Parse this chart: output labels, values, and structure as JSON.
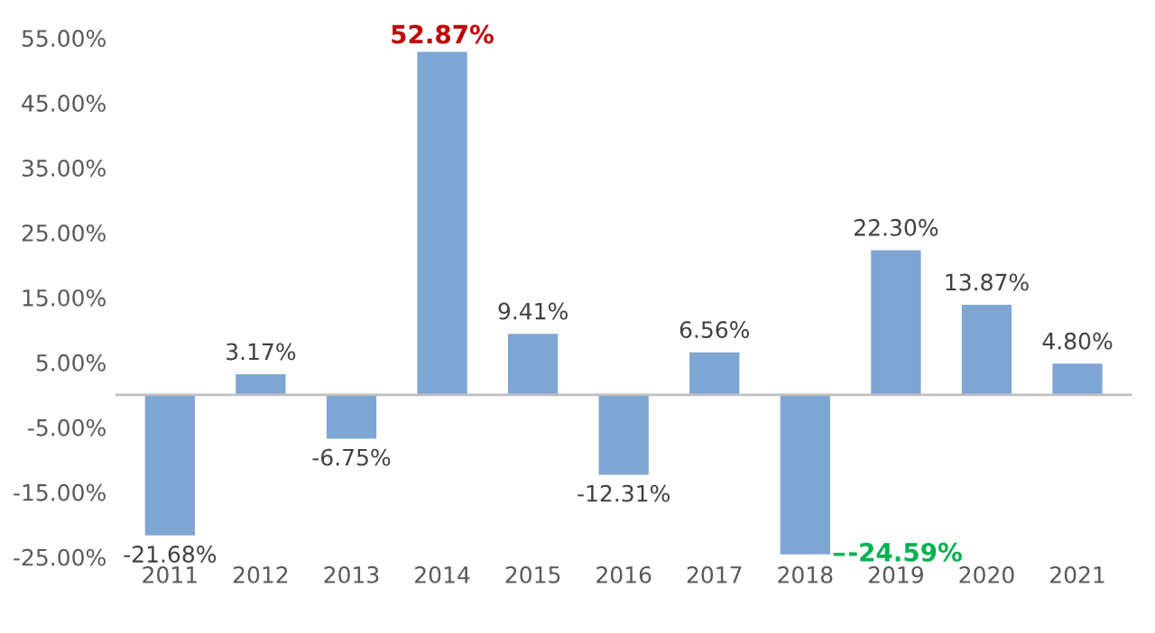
{
  "chart_data": {
    "type": "bar",
    "categories": [
      "2011",
      "2012",
      "2013",
      "2014",
      "2015",
      "2016",
      "2017",
      "2018",
      "2019",
      "2020",
      "2021"
    ],
    "values": [
      -21.68,
      3.17,
      -6.75,
      52.87,
      9.41,
      -12.31,
      6.56,
      -24.59,
      22.3,
      13.87,
      4.8
    ],
    "value_labels": [
      "-21.68%",
      "3.17%",
      "-6.75%",
      "52.87%",
      "9.41%",
      "-12.31%",
      "6.56%",
      "-24.59%",
      "22.30%",
      "13.87%",
      "4.80%"
    ],
    "color": "#7fa6d3",
    "ylim": [
      -25,
      55
    ],
    "yticks": [
      {
        "value": -25,
        "label": "-25.00%"
      },
      {
        "value": -15,
        "label": "-15.00%"
      },
      {
        "value": -5,
        "label": "-5.00%"
      },
      {
        "value": 5,
        "label": "5.00%"
      },
      {
        "value": 15,
        "label": "15.00%"
      },
      {
        "value": 25,
        "label": "25.00%"
      },
      {
        "value": 35,
        "label": "35.00%"
      },
      {
        "value": 45,
        "label": "45.00%"
      },
      {
        "value": 55,
        "label": "55.00%"
      }
    ],
    "grid": false,
    "legend": false
  }
}
